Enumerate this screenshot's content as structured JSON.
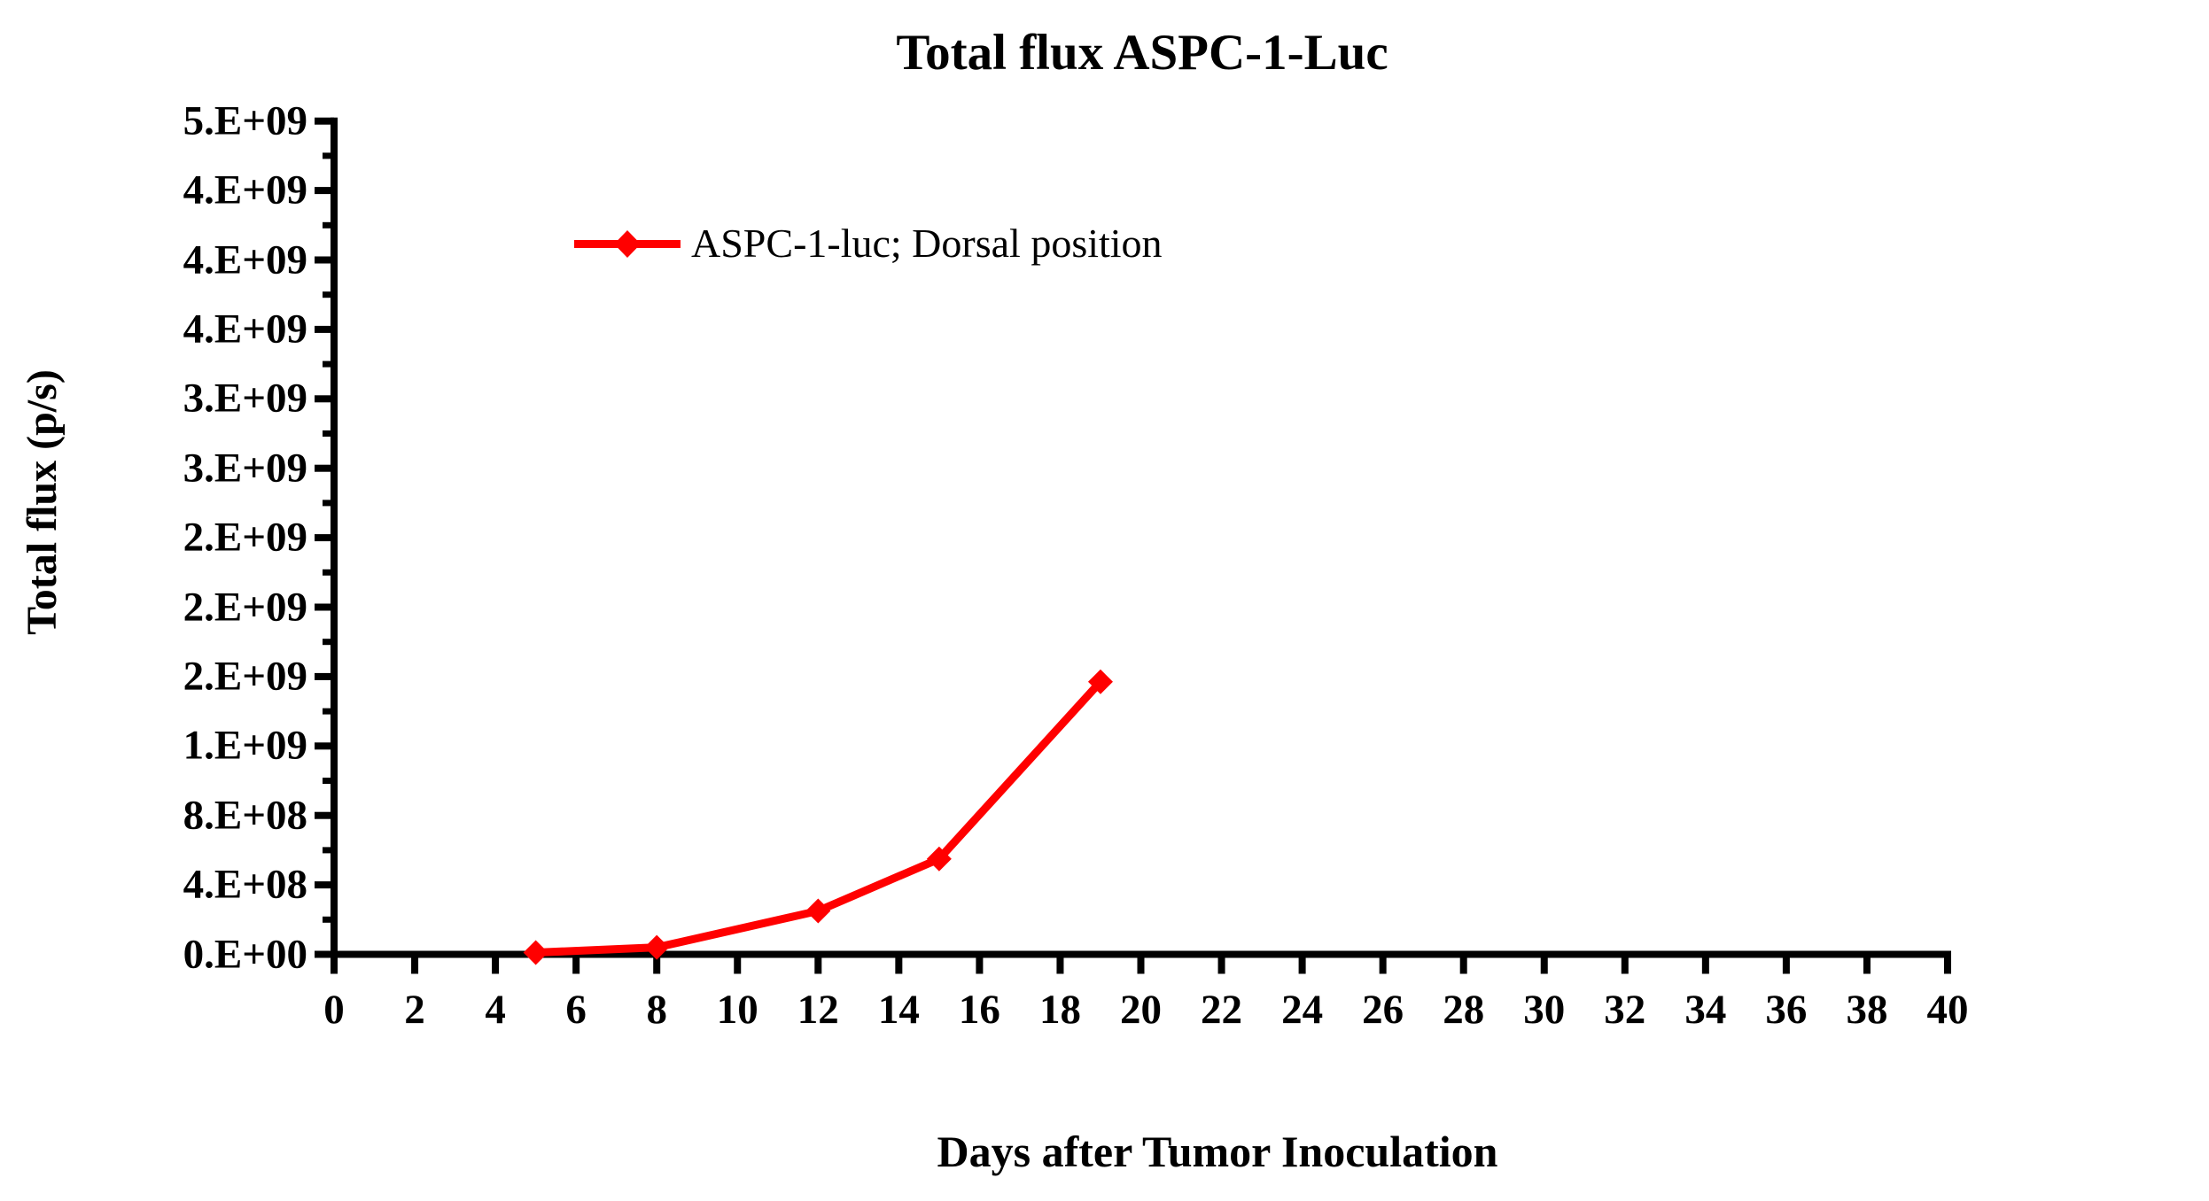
{
  "page": {
    "background": "#FFFFFF",
    "text_color": "#000000"
  },
  "chart_data": {
    "type": "line",
    "title": "Total flux ASPC-1-Luc",
    "xlabel": "Days after Tumor Inoculation",
    "ylabel": "Total flux  (p/s)",
    "grid": false,
    "axis_color": "#000000",
    "accent_color": "#FF0000",
    "legend": {
      "position": "inside-top-left",
      "entries": [
        {
          "label": "ASPC-1-luc; Dorsal position",
          "color": "#FF0000",
          "marker": "diamond-on-line"
        }
      ]
    },
    "series": [
      {
        "name": "ASPC-1-luc; Dorsal position",
        "color": "#FF0000",
        "marker": "diamond",
        "x": [
          5,
          8,
          12,
          15,
          19
        ],
        "y": [
          10000000,
          40000000,
          250000000,
          550000000,
          1570000000
        ]
      }
    ],
    "xlim": [
      0,
      40
    ],
    "ylim": [
      0,
      4800000000
    ],
    "x_ticks": [
      0,
      2,
      4,
      6,
      8,
      10,
      12,
      14,
      16,
      18,
      20,
      22,
      24,
      26,
      28,
      30,
      32,
      34,
      36,
      38,
      40
    ],
    "y_major_ticks": [
      {
        "value": 0,
        "label": "0.E+00"
      },
      {
        "value": 400000000,
        "label": "4.E+08"
      },
      {
        "value": 800000000,
        "label": "8.E+08"
      },
      {
        "value": 1200000000,
        "label": "1.E+09"
      },
      {
        "value": 1600000000,
        "label": "2.E+09"
      },
      {
        "value": 2000000000,
        "label": "2.E+09"
      },
      {
        "value": 2400000000,
        "label": "2.E+09"
      },
      {
        "value": 2800000000,
        "label": "3.E+09"
      },
      {
        "value": 3200000000,
        "label": "3.E+09"
      },
      {
        "value": 3600000000,
        "label": "4.E+09"
      },
      {
        "value": 4000000000,
        "label": "4.E+09"
      },
      {
        "value": 4400000000,
        "label": "4.E+09"
      },
      {
        "value": 4800000000,
        "label": "5.E+09"
      }
    ],
    "y_minor_step": 200000000
  }
}
